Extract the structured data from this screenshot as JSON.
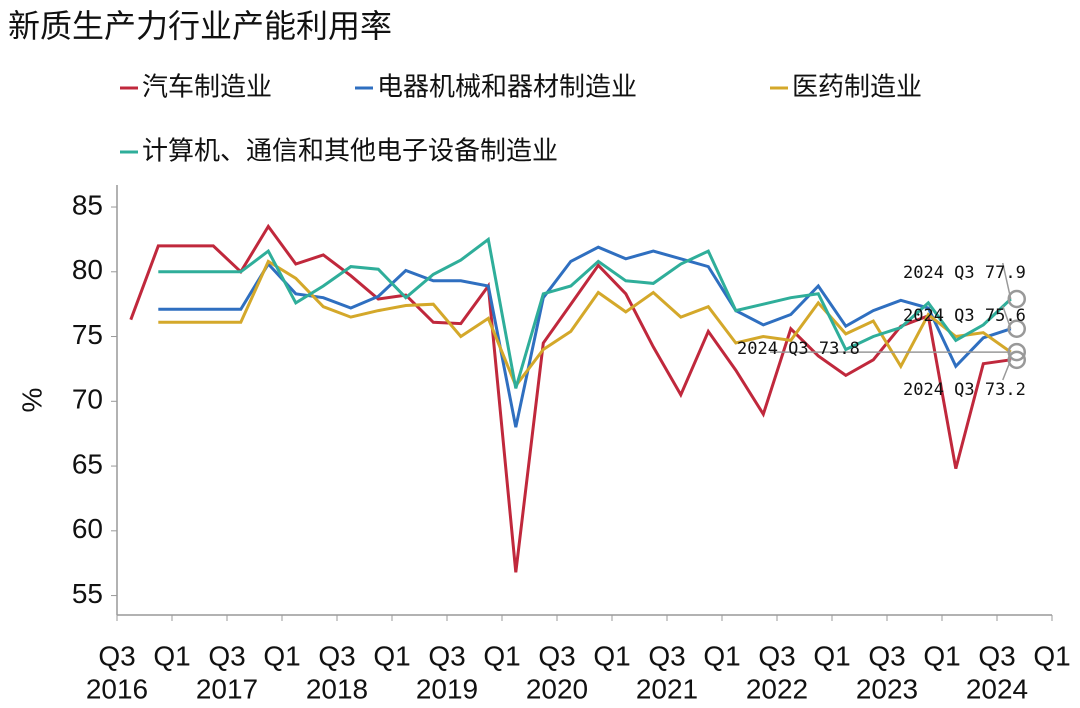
{
  "chart_data": {
    "type": "line",
    "title": "新质生产力行业产能利用率",
    "y_label": "%",
    "x": [
      2016.625,
      2016.875,
      2017.125,
      2017.375,
      2017.625,
      2017.875,
      2018.125,
      2018.375,
      2018.625,
      2018.875,
      2019.125,
      2019.375,
      2019.625,
      2019.875,
      2020.125,
      2020.375,
      2020.625,
      2020.875,
      2021.125,
      2021.375,
      2021.625,
      2021.875,
      2022.125,
      2022.375,
      2022.625,
      2022.875,
      2023.125,
      2023.375,
      2023.625,
      2023.875,
      2024.125,
      2024.375,
      2024.625
    ],
    "series": [
      {
        "name": "汽车制造业",
        "color": "#c0283c",
        "values": [
          76.3,
          82,
          82,
          82,
          80,
          83.5,
          80.6,
          81.3,
          79.7,
          77.9,
          78.2,
          76.1,
          76.0,
          78.9,
          56.8,
          74.5,
          77.5,
          80.5,
          78.3,
          74.2,
          70.5,
          75.4,
          72.4,
          69.0,
          75.6,
          73.5,
          72.0,
          73.2,
          75.8,
          76.6,
          64.8,
          72.9,
          73.2
        ]
      },
      {
        "name": "电器机械和器材制造业",
        "color": "#2f6fc0",
        "values": [
          null,
          77.1,
          77.1,
          77.1,
          77.1,
          80.6,
          78.3,
          78.0,
          77.2,
          78.1,
          80.1,
          79.3,
          79.3,
          78.9,
          68.0,
          78.0,
          80.8,
          81.9,
          81.0,
          81.6,
          81.0,
          80.4,
          77.0,
          75.9,
          76.7,
          78.9,
          75.8,
          77.0,
          77.8,
          77.2,
          72.7,
          74.9,
          75.6
        ]
      },
      {
        "name": "医药制造业",
        "color": "#d4a82a",
        "values": [
          null,
          76.1,
          76.1,
          76.1,
          76.1,
          80.8,
          79.5,
          77.3,
          76.5,
          77.0,
          77.4,
          77.5,
          75.0,
          76.4,
          71.2,
          74.0,
          75.4,
          78.4,
          76.9,
          78.4,
          76.5,
          77.3,
          74.5,
          75.0,
          74.7,
          77.6,
          75.2,
          76.2,
          72.7,
          76.7,
          75.0,
          75.3,
          73.8
        ]
      },
      {
        "name": "计算机、通信和其他电子设备制造业",
        "color": "#2fae9a",
        "values": [
          null,
          80.0,
          80.0,
          80.0,
          80.0,
          81.6,
          77.6,
          78.9,
          80.4,
          80.2,
          78.0,
          79.8,
          80.9,
          82.5,
          71.0,
          78.3,
          78.9,
          80.8,
          79.3,
          79.1,
          80.6,
          81.6,
          77.0,
          77.5,
          78.0,
          78.3,
          74.0,
          75.0,
          75.7,
          77.6,
          74.7,
          75.9,
          77.9
        ]
      }
    ],
    "annotations": [
      "2024 Q3 73.2",
      "2024 Q3 75.6",
      "2024 Q3 73.8",
      "2024 Q3 77.9"
    ],
    "xlim": [
      2016.5,
      2025.0
    ],
    "xticks": [
      {
        "value": 2016.5,
        "label": "Q3"
      },
      {
        "value": 2017.0,
        "label": "Q1"
      },
      {
        "value": 2017.5,
        "label": "Q3"
      },
      {
        "value": 2018.0,
        "label": "Q1"
      },
      {
        "value": 2018.5,
        "label": "Q3"
      },
      {
        "value": 2019.0,
        "label": "Q1"
      },
      {
        "value": 2019.5,
        "label": "Q3"
      },
      {
        "value": 2020.0,
        "label": "Q1"
      },
      {
        "value": 2020.5,
        "label": "Q3"
      },
      {
        "value": 2021.0,
        "label": "Q1"
      },
      {
        "value": 2021.5,
        "label": "Q3"
      },
      {
        "value": 2022.0,
        "label": "Q1"
      },
      {
        "value": 2022.5,
        "label": "Q3"
      },
      {
        "value": 2023.0,
        "label": "Q1"
      },
      {
        "value": 2023.5,
        "label": "Q3"
      },
      {
        "value": 2024.0,
        "label": "Q1"
      },
      {
        "value": 2024.5,
        "label": "Q3"
      },
      {
        "value": 2025.0,
        "label": "Q1"
      }
    ],
    "year_labels": [
      {
        "value": 2016.5,
        "label": "2016"
      },
      {
        "value": 2017.5,
        "label": "2017"
      },
      {
        "value": 2018.5,
        "label": "2018"
      },
      {
        "value": 2019.5,
        "label": "2019"
      },
      {
        "value": 2020.5,
        "label": "2020"
      },
      {
        "value": 2021.5,
        "label": "2021"
      },
      {
        "value": 2022.5,
        "label": "2022"
      },
      {
        "value": 2023.5,
        "label": "2023"
      },
      {
        "value": 2024.5,
        "label": "2024"
      }
    ],
    "ylim": [
      53.5,
      86.7
    ],
    "yticks": [
      55,
      60,
      65,
      70,
      75,
      80,
      85
    ]
  }
}
